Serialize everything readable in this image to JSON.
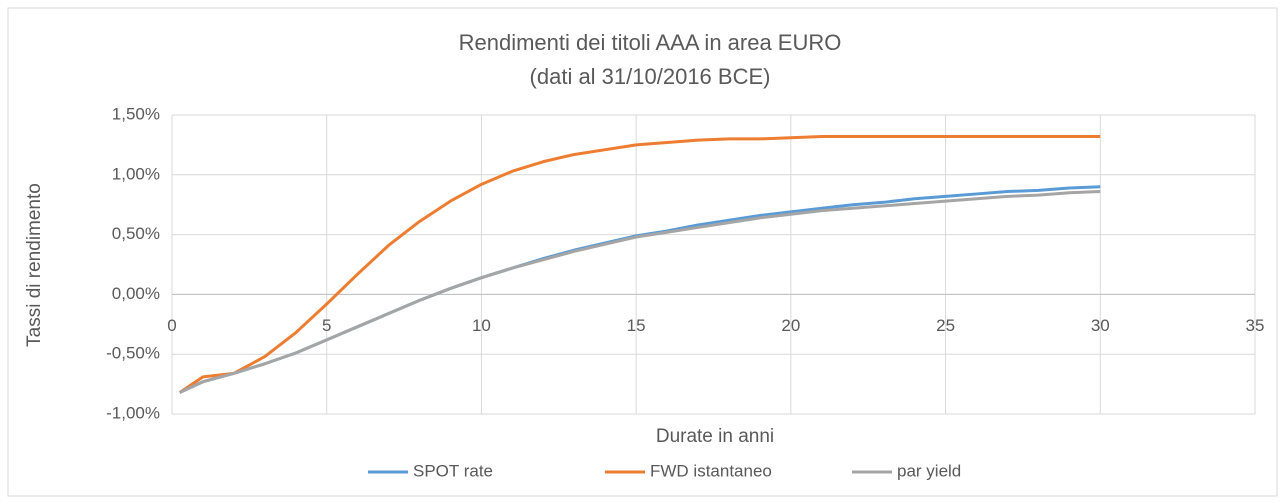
{
  "chart_data": {
    "type": "line",
    "title": "Rendimenti dei titoli AAA in area EURO",
    "subtitle": "(dati al 31/10/2016 BCE)",
    "x_label": "Durate in anni",
    "y_label": "Tassi di rendimento",
    "x": [
      0.25,
      1,
      2,
      3,
      4,
      5,
      6,
      7,
      8,
      9,
      10,
      11,
      12,
      13,
      14,
      15,
      16,
      17,
      18,
      19,
      20,
      21,
      22,
      23,
      24,
      25,
      26,
      27,
      28,
      29,
      30
    ],
    "series": [
      {
        "name": "SPOT rate",
        "color": "#5b9bd5",
        "values": [
          -0.82,
          -0.73,
          -0.66,
          -0.58,
          -0.49,
          -0.38,
          -0.27,
          -0.16,
          -0.05,
          0.05,
          0.14,
          0.22,
          0.3,
          0.37,
          0.43,
          0.49,
          0.53,
          0.58,
          0.62,
          0.66,
          0.69,
          0.72,
          0.75,
          0.77,
          0.8,
          0.82,
          0.84,
          0.86,
          0.87,
          0.89,
          0.9
        ]
      },
      {
        "name": "FWD istantaneo",
        "color": "#ed7d31",
        "values": [
          -0.82,
          -0.69,
          -0.66,
          -0.52,
          -0.32,
          -0.08,
          0.17,
          0.41,
          0.61,
          0.78,
          0.92,
          1.03,
          1.11,
          1.17,
          1.21,
          1.25,
          1.27,
          1.29,
          1.3,
          1.3,
          1.31,
          1.32,
          1.32,
          1.32,
          1.32,
          1.32,
          1.32,
          1.32,
          1.32,
          1.32,
          1.32
        ]
      },
      {
        "name": "par yield",
        "color": "#a5a5a5",
        "values": [
          -0.82,
          -0.73,
          -0.66,
          -0.58,
          -0.49,
          -0.38,
          -0.27,
          -0.16,
          -0.05,
          0.05,
          0.14,
          0.22,
          0.29,
          0.36,
          0.42,
          0.48,
          0.52,
          0.56,
          0.6,
          0.64,
          0.67,
          0.7,
          0.72,
          0.74,
          0.76,
          0.78,
          0.8,
          0.82,
          0.83,
          0.85,
          0.86
        ]
      }
    ],
    "xlim": [
      0,
      35
    ],
    "xticks": [
      0,
      5,
      10,
      15,
      20,
      25,
      30,
      35
    ],
    "ylim": [
      -1,
      1.5
    ],
    "yticks": [
      {
        "value": -1,
        "label": "-1,00%"
      },
      {
        "value": -0.5,
        "label": "-0,50%"
      },
      {
        "value": 0,
        "label": "0,00%"
      },
      {
        "value": 0.5,
        "label": "0,50%"
      },
      {
        "value": 1,
        "label": "1,00%"
      },
      {
        "value": 1.5,
        "label": "1,50%"
      }
    ],
    "grid": true,
    "legend": "bottom"
  }
}
